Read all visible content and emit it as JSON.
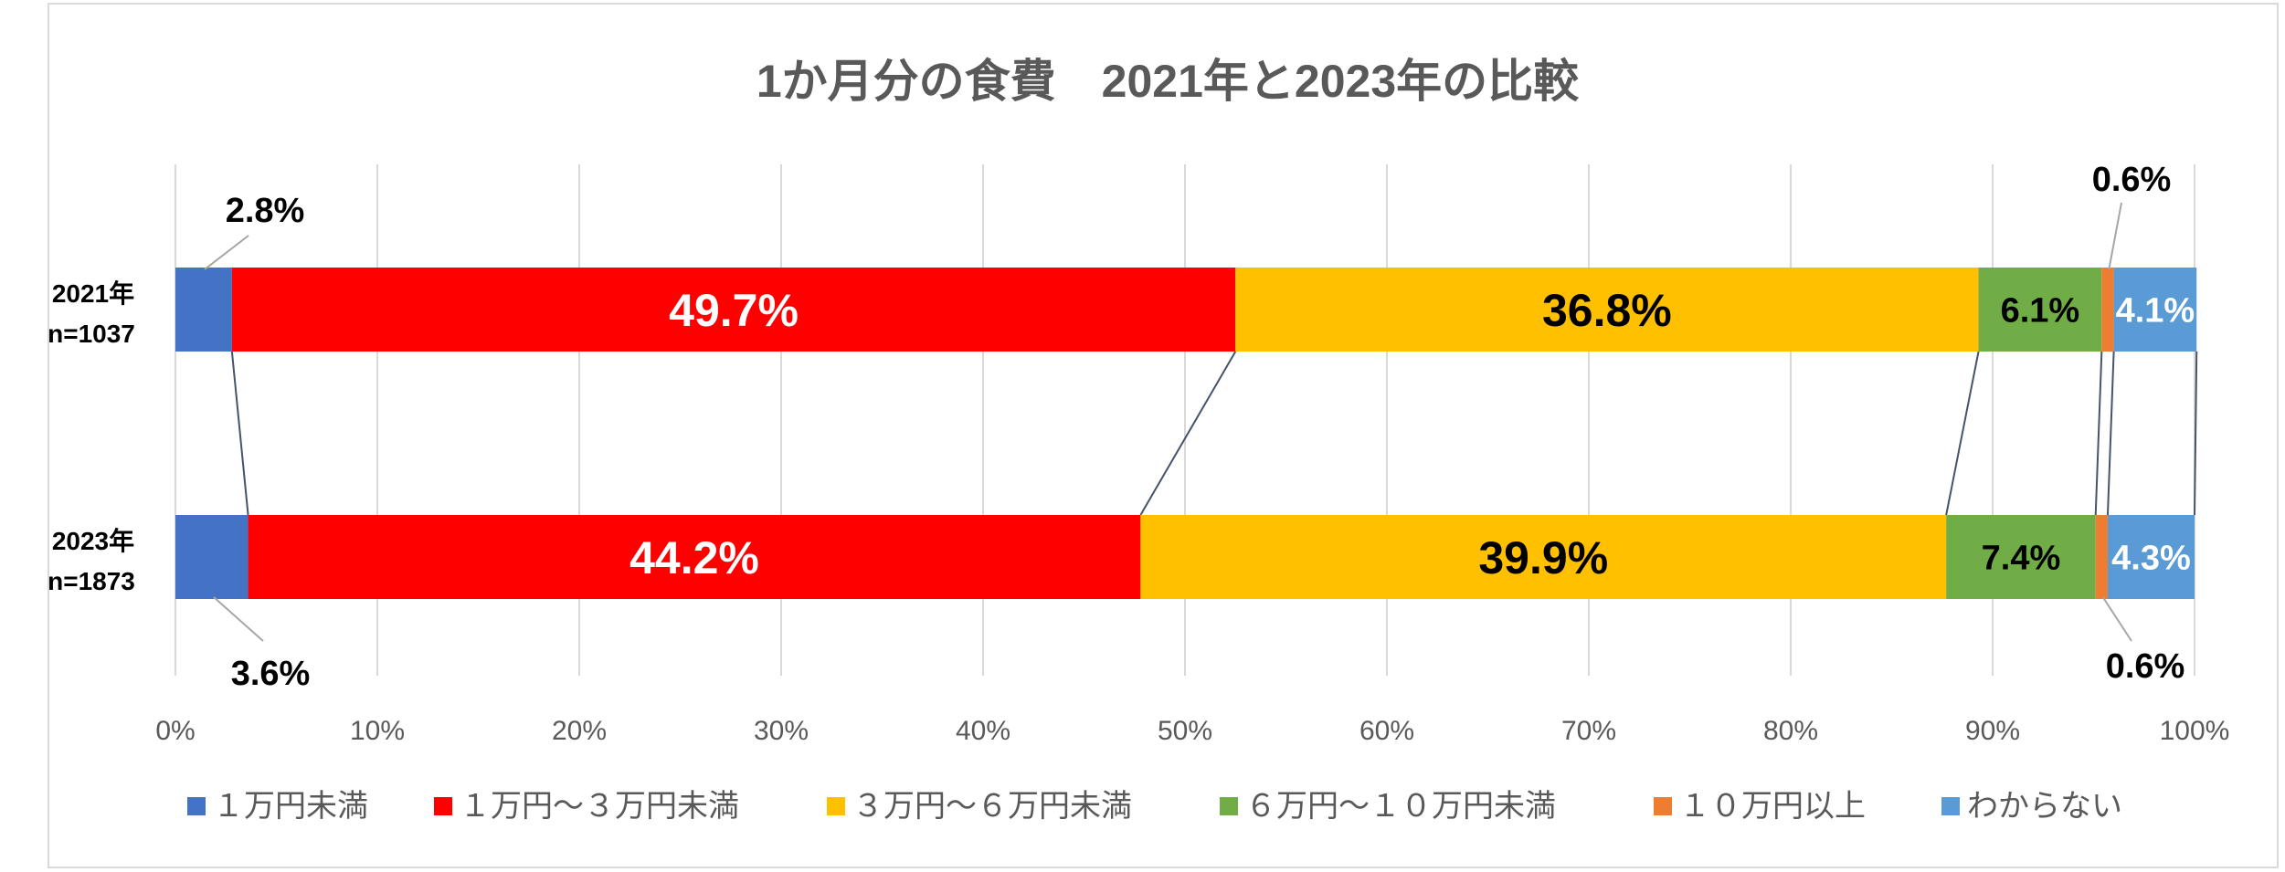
{
  "chart_data": {
    "type": "bar",
    "orientation": "horizontal",
    "stacked": "percent",
    "title": "1か月分の食費　2021年と2023年の比較",
    "categories": [
      {
        "year": "2021年",
        "n": "n=1037"
      },
      {
        "year": "2023年",
        "n": "n=1873"
      }
    ],
    "series": [
      {
        "name": "１万円未満",
        "color": "#4472C4",
        "values": [
          2.8,
          3.6
        ],
        "labels": [
          "2.8%",
          "3.6%"
        ],
        "label_color": "#000000",
        "label_placement": "callout"
      },
      {
        "name": "１万円～３万円未満",
        "color": "#FF0000",
        "values": [
          49.7,
          44.2
        ],
        "labels": [
          "49.7%",
          "44.2%"
        ],
        "label_color": "#FFFFFF",
        "label_placement": "inside"
      },
      {
        "name": "３万円～６万円未満",
        "color": "#FFC000",
        "values": [
          36.8,
          39.9
        ],
        "labels": [
          "36.8%",
          "39.9%"
        ],
        "label_color": "#000000",
        "label_placement": "inside"
      },
      {
        "name": "６万円～１０万円未満",
        "color": "#70AD47",
        "values": [
          6.1,
          7.4
        ],
        "labels": [
          "6.1%",
          "7.4%"
        ],
        "label_color": "#000000",
        "label_placement": "inside"
      },
      {
        "name": "１０万円以上",
        "color": "#ED7D31",
        "values": [
          0.6,
          0.6
        ],
        "labels": [
          "0.6%",
          "0.6%"
        ],
        "label_color": "#000000",
        "label_placement": "callout"
      },
      {
        "name": "わからない",
        "color": "#5B9BD5",
        "values": [
          4.1,
          4.3
        ],
        "labels": [
          "4.1%",
          "4.3%"
        ],
        "label_color": "#FFFFFF",
        "label_placement": "inside"
      }
    ],
    "x_ticks": [
      "0%",
      "10%",
      "20%",
      "30%",
      "40%",
      "50%",
      "60%",
      "70%",
      "80%",
      "90%",
      "100%"
    ],
    "xlim": [
      0,
      100
    ],
    "grid": true,
    "series_lines": true,
    "legend_position": "bottom"
  }
}
